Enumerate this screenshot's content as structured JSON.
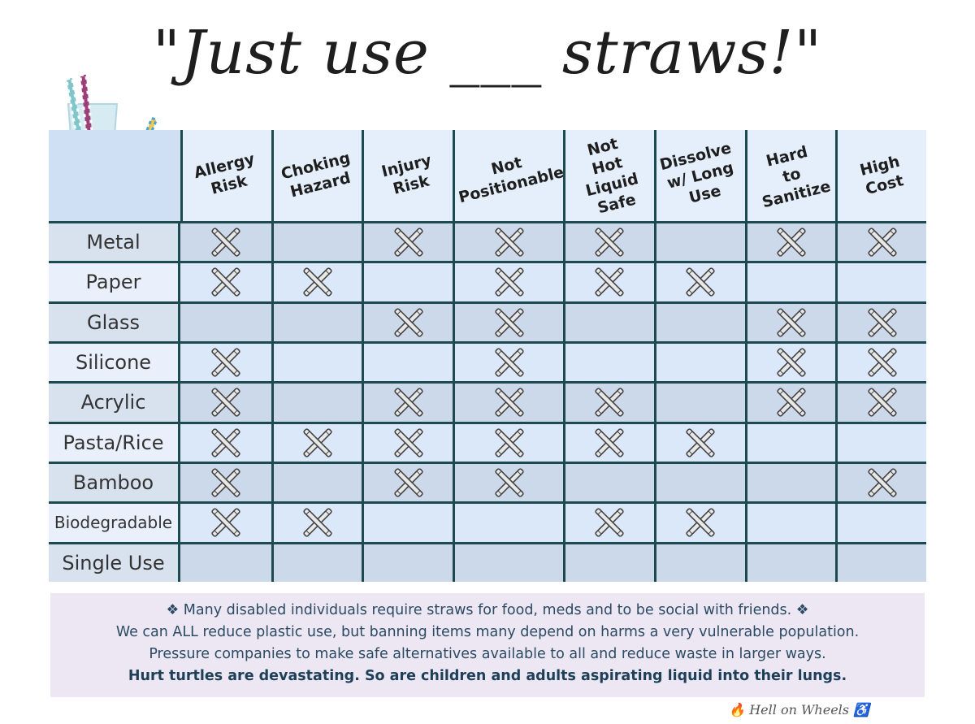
{
  "title": "\"Just use ___ straws!\"",
  "columns": [
    "Allergy\nRisk",
    "Choking\nHazard",
    "Injury\nRisk",
    "Not\nPositionable",
    "Not\nHot Liquid\nSafe",
    "Dissolve\nw/ Long\nUse",
    "Hard\nto Sanitize",
    "High\nCost"
  ],
  "rows": [
    {
      "label": "Metal",
      "marks": [
        1,
        0,
        1,
        1,
        1,
        0,
        1,
        1
      ]
    },
    {
      "label": "Paper",
      "marks": [
        1,
        1,
        0,
        1,
        1,
        1,
        0,
        0
      ]
    },
    {
      "label": "Glass",
      "marks": [
        0,
        0,
        1,
        1,
        0,
        0,
        1,
        1
      ]
    },
    {
      "label": "Silicone",
      "marks": [
        1,
        0,
        0,
        1,
        0,
        0,
        1,
        1
      ]
    },
    {
      "label": "Acrylic",
      "marks": [
        1,
        0,
        1,
        1,
        1,
        0,
        1,
        1
      ]
    },
    {
      "label": "Pasta/Rice",
      "marks": [
        1,
        1,
        1,
        1,
        1,
        1,
        0,
        0
      ]
    },
    {
      "label": "Bamboo",
      "marks": [
        1,
        0,
        1,
        1,
        0,
        0,
        0,
        1
      ]
    },
    {
      "label": "Biodegradable",
      "marks": [
        1,
        1,
        0,
        0,
        1,
        1,
        0,
        0
      ]
    },
    {
      "label": "Single Use",
      "marks": [
        0,
        0,
        0,
        0,
        0,
        0,
        0,
        0
      ]
    }
  ],
  "footer": {
    "line1": "❖ Many disabled individuals require straws for food, meds and to be social with friends. ❖",
    "line2": "We can ALL reduce plastic use, but banning items many depend on harms a very vulnerable population.",
    "line3": "Pressure companies to make safe alternatives available to all and reduce waste in larger ways.",
    "line4": "Hurt turtles are devastating. So are children and adults aspirating liquid into their lungs."
  },
  "credit": "🔥 Hell on Wheels ♿",
  "icons": {
    "mark": "crossed-straws-icon",
    "header_art": "glasses-with-straws-icon"
  },
  "colors": {
    "grid_lines": "#1d4a4e",
    "row_dark": "#ccd9ea",
    "row_light": "#dbe8f9",
    "footer_bg": "#ece7f3"
  }
}
